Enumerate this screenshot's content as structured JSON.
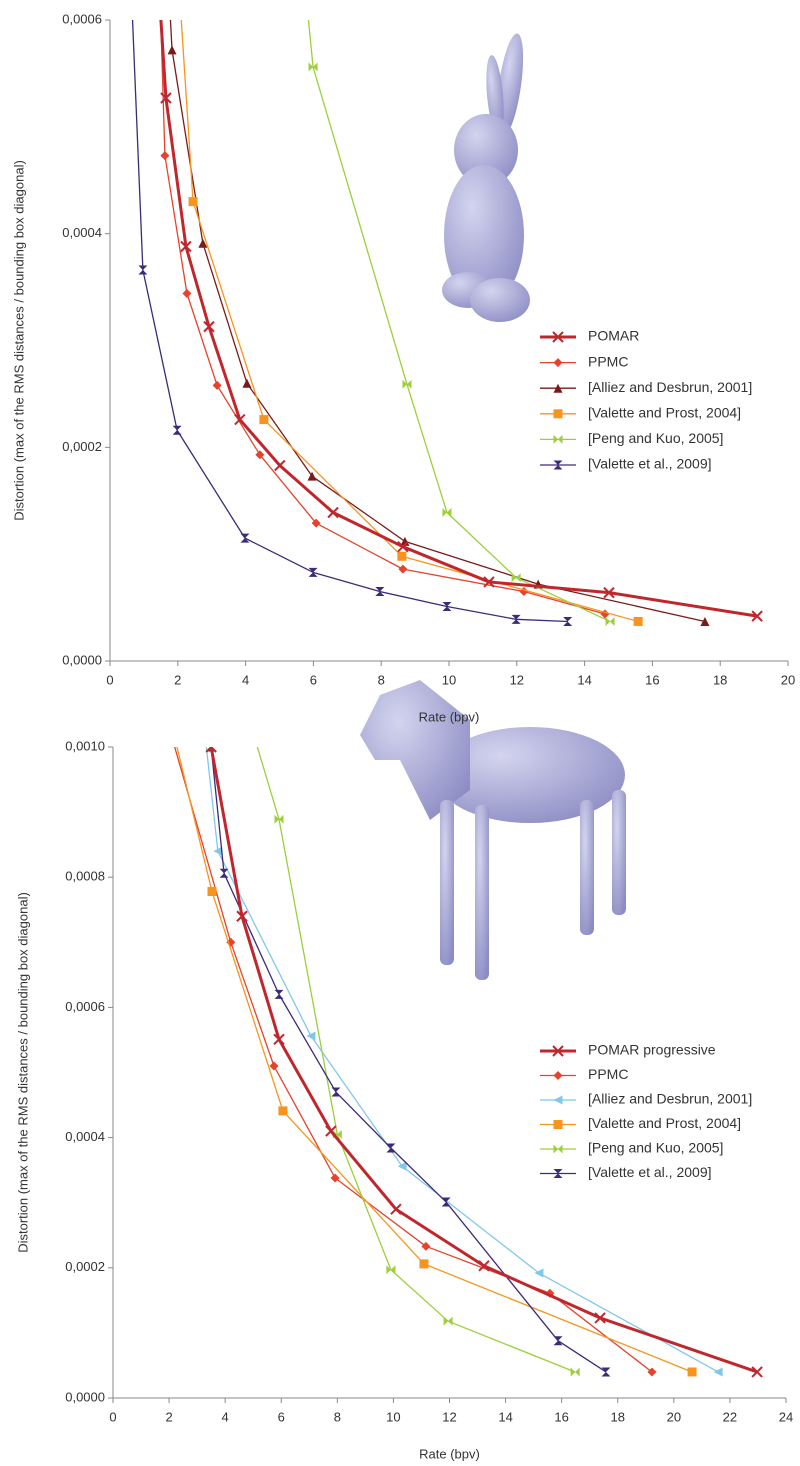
{
  "chart_data": [
    {
      "type": "line",
      "xlabel": "Rate (bpv)",
      "ylabel": "Distortion (max of the RMS distances / bounding box diagonal)",
      "xlim": [
        0,
        20
      ],
      "xticks": [
        0,
        2,
        4,
        6,
        8,
        10,
        12,
        14,
        16,
        18,
        20
      ],
      "ylim": [
        0,
        0.0006
      ],
      "yticks": [
        {
          "value": 0,
          "label": "0,0000"
        },
        {
          "value": 0.0002,
          "label": "0,0002"
        },
        {
          "value": 0.0004,
          "label": "0,0004"
        },
        {
          "value": 0.0006,
          "label": "0,0006"
        }
      ],
      "legend": "right",
      "series": [
        {
          "name": "POMAR",
          "color": "#c0272d",
          "marker": "x",
          "linewidth": 3,
          "x": [
            1.4,
            1.65,
            2.24,
            2.92,
            3.83,
            5.01,
            6.58,
            8.64,
            11.18,
            14.72,
            19.09
          ],
          "values": [
            0.00065,
            0.000527,
            0.000388,
            0.000313,
            0.000226,
            0.000183,
            0.000139,
            0.000107,
            7.4e-05,
            6.4e-05,
            4.2e-05
          ]
        },
        {
          "name": "PPMC",
          "color": "#e8412c",
          "marker": "diamond",
          "linewidth": 1.3,
          "x": [
            1.45,
            1.62,
            2.27,
            3.16,
            4.42,
            6.08,
            8.64,
            12.21,
            14.6
          ],
          "values": [
            0.00065,
            0.000473,
            0.000344,
            0.000258,
            0.000193,
            0.000129,
            8.6e-05,
            6.5e-05,
            4.4e-05
          ]
        },
        {
          "name": "[Alliez and Desbrun, 2001]",
          "color": "#7b1a1a",
          "marker": "triangle",
          "linewidth": 1.3,
          "x": [
            1.7,
            1.83,
            2.74,
            4.04,
            5.96,
            8.7,
            12.63,
            17.55
          ],
          "values": [
            0.00065,
            0.000572,
            0.000391,
            0.00026,
            0.000173,
            0.000112,
            7.2e-05,
            3.7e-05
          ]
        },
        {
          "name": "[Valette and Prost, 2004]",
          "color": "#f7941d",
          "marker": "square",
          "linewidth": 1.3,
          "x": [
            2.0,
            2.45,
            4.54,
            8.61,
            15.58
          ],
          "values": [
            0.00065,
            0.00043,
            0.000226,
            9.8e-05,
            3.7e-05
          ]
        },
        {
          "name": "[Peng and Kuo, 2005]",
          "color": "#9bd03a",
          "marker": "bowtie",
          "linewidth": 1.3,
          "x": [
            5.7,
            5.99,
            8.76,
            9.94,
            11.98,
            14.75
          ],
          "values": [
            0.00065,
            0.000556,
            0.000259,
            0.000139,
            7.8e-05,
            3.7e-05
          ]
        },
        {
          "name": "[Valette et al., 2009]",
          "color": "#3d2a78",
          "marker": "hourglass",
          "linewidth": 1.3,
          "x": [
            0.6,
            0.97,
            1.98,
            3.98,
            5.99,
            7.96,
            9.94,
            11.98,
            13.5
          ],
          "values": [
            0.00065,
            0.000366,
            0.000216,
            0.000115,
            8.3e-05,
            6.5e-05,
            5.1e-05,
            3.9e-05,
            3.7e-05
          ]
        }
      ]
    },
    {
      "type": "line",
      "xlabel": "Rate (bpv)",
      "ylabel": "Distortion (max of the RMS distances / bounding box diagonal)",
      "xlim": [
        0,
        24
      ],
      "xticks": [
        0,
        2,
        4,
        6,
        8,
        10,
        12,
        14,
        16,
        18,
        20,
        22,
        24
      ],
      "ylim": [
        0,
        0.001
      ],
      "yticks": [
        {
          "value": 0,
          "label": "0,0000"
        },
        {
          "value": 0.0002,
          "label": "0,0002"
        },
        {
          "value": 0.0004,
          "label": "0,0004"
        },
        {
          "value": 0.0006,
          "label": "0,0006"
        },
        {
          "value": 0.0008,
          "label": "0,0008"
        },
        {
          "value": 0.001,
          "label": "0,0010"
        }
      ],
      "legend": "right",
      "series": [
        {
          "name": "POMAR progressive",
          "color": "#c0272d",
          "marker": "x",
          "linewidth": 3,
          "x": [
            3.5,
            4.6,
            5.92,
            7.77,
            10.09,
            13.23,
            17.37,
            22.97
          ],
          "values": [
            0.001,
            0.00074,
            0.000551,
            0.00041,
            0.00029,
            0.000203,
            0.000123,
            4e-05
          ]
        },
        {
          "name": "PPMC",
          "color": "#e8412c",
          "marker": "diamond",
          "linewidth": 1.3,
          "x": [
            2.0,
            4.2,
            5.74,
            7.92,
            11.16,
            15.58,
            19.22
          ],
          "values": [
            0.00103,
            0.0007,
            0.00051,
            0.000338,
            0.000233,
            0.000161,
            4e-05
          ]
        },
        {
          "name": "[Alliez and Desbrun, 2001]",
          "color": "#80c8ea",
          "marker": "triangle-left",
          "linewidth": 1.3,
          "x": [
            3.2,
            3.74,
            7.06,
            10.31,
            15.19,
            21.58
          ],
          "values": [
            0.00105,
            0.00084,
            0.000556,
            0.000356,
            0.000192,
            4e-05
          ]
        },
        {
          "name": "[Valette and Prost, 2004]",
          "color": "#f7941d",
          "marker": "square",
          "linewidth": 1.3,
          "x": [
            2.0,
            3.53,
            6.06,
            11.09,
            20.65
          ],
          "values": [
            0.00105,
            0.000778,
            0.000441,
            0.000206,
            4e-05
          ]
        },
        {
          "name": "[Peng and Kuo, 2005]",
          "color": "#9bd03a",
          "marker": "bowtie",
          "linewidth": 1.3,
          "x": [
            4.8,
            5.92,
            8.0,
            9.91,
            11.95,
            16.48
          ],
          "values": [
            0.00105,
            0.000889,
            0.000405,
            0.000197,
            0.000118,
            4e-05
          ]
        },
        {
          "name": "[Valette et al., 2009]",
          "color": "#3d2a78",
          "marker": "hourglass",
          "linewidth": 1.3,
          "x": [
            3.5,
            3.96,
            5.92,
            7.95,
            9.91,
            11.88,
            15.87,
            17.58
          ],
          "values": [
            0.001,
            0.000806,
            0.00062,
            0.00047,
            0.000384,
            0.000301,
            8.8e-05,
            4e-05
          ]
        }
      ]
    }
  ]
}
